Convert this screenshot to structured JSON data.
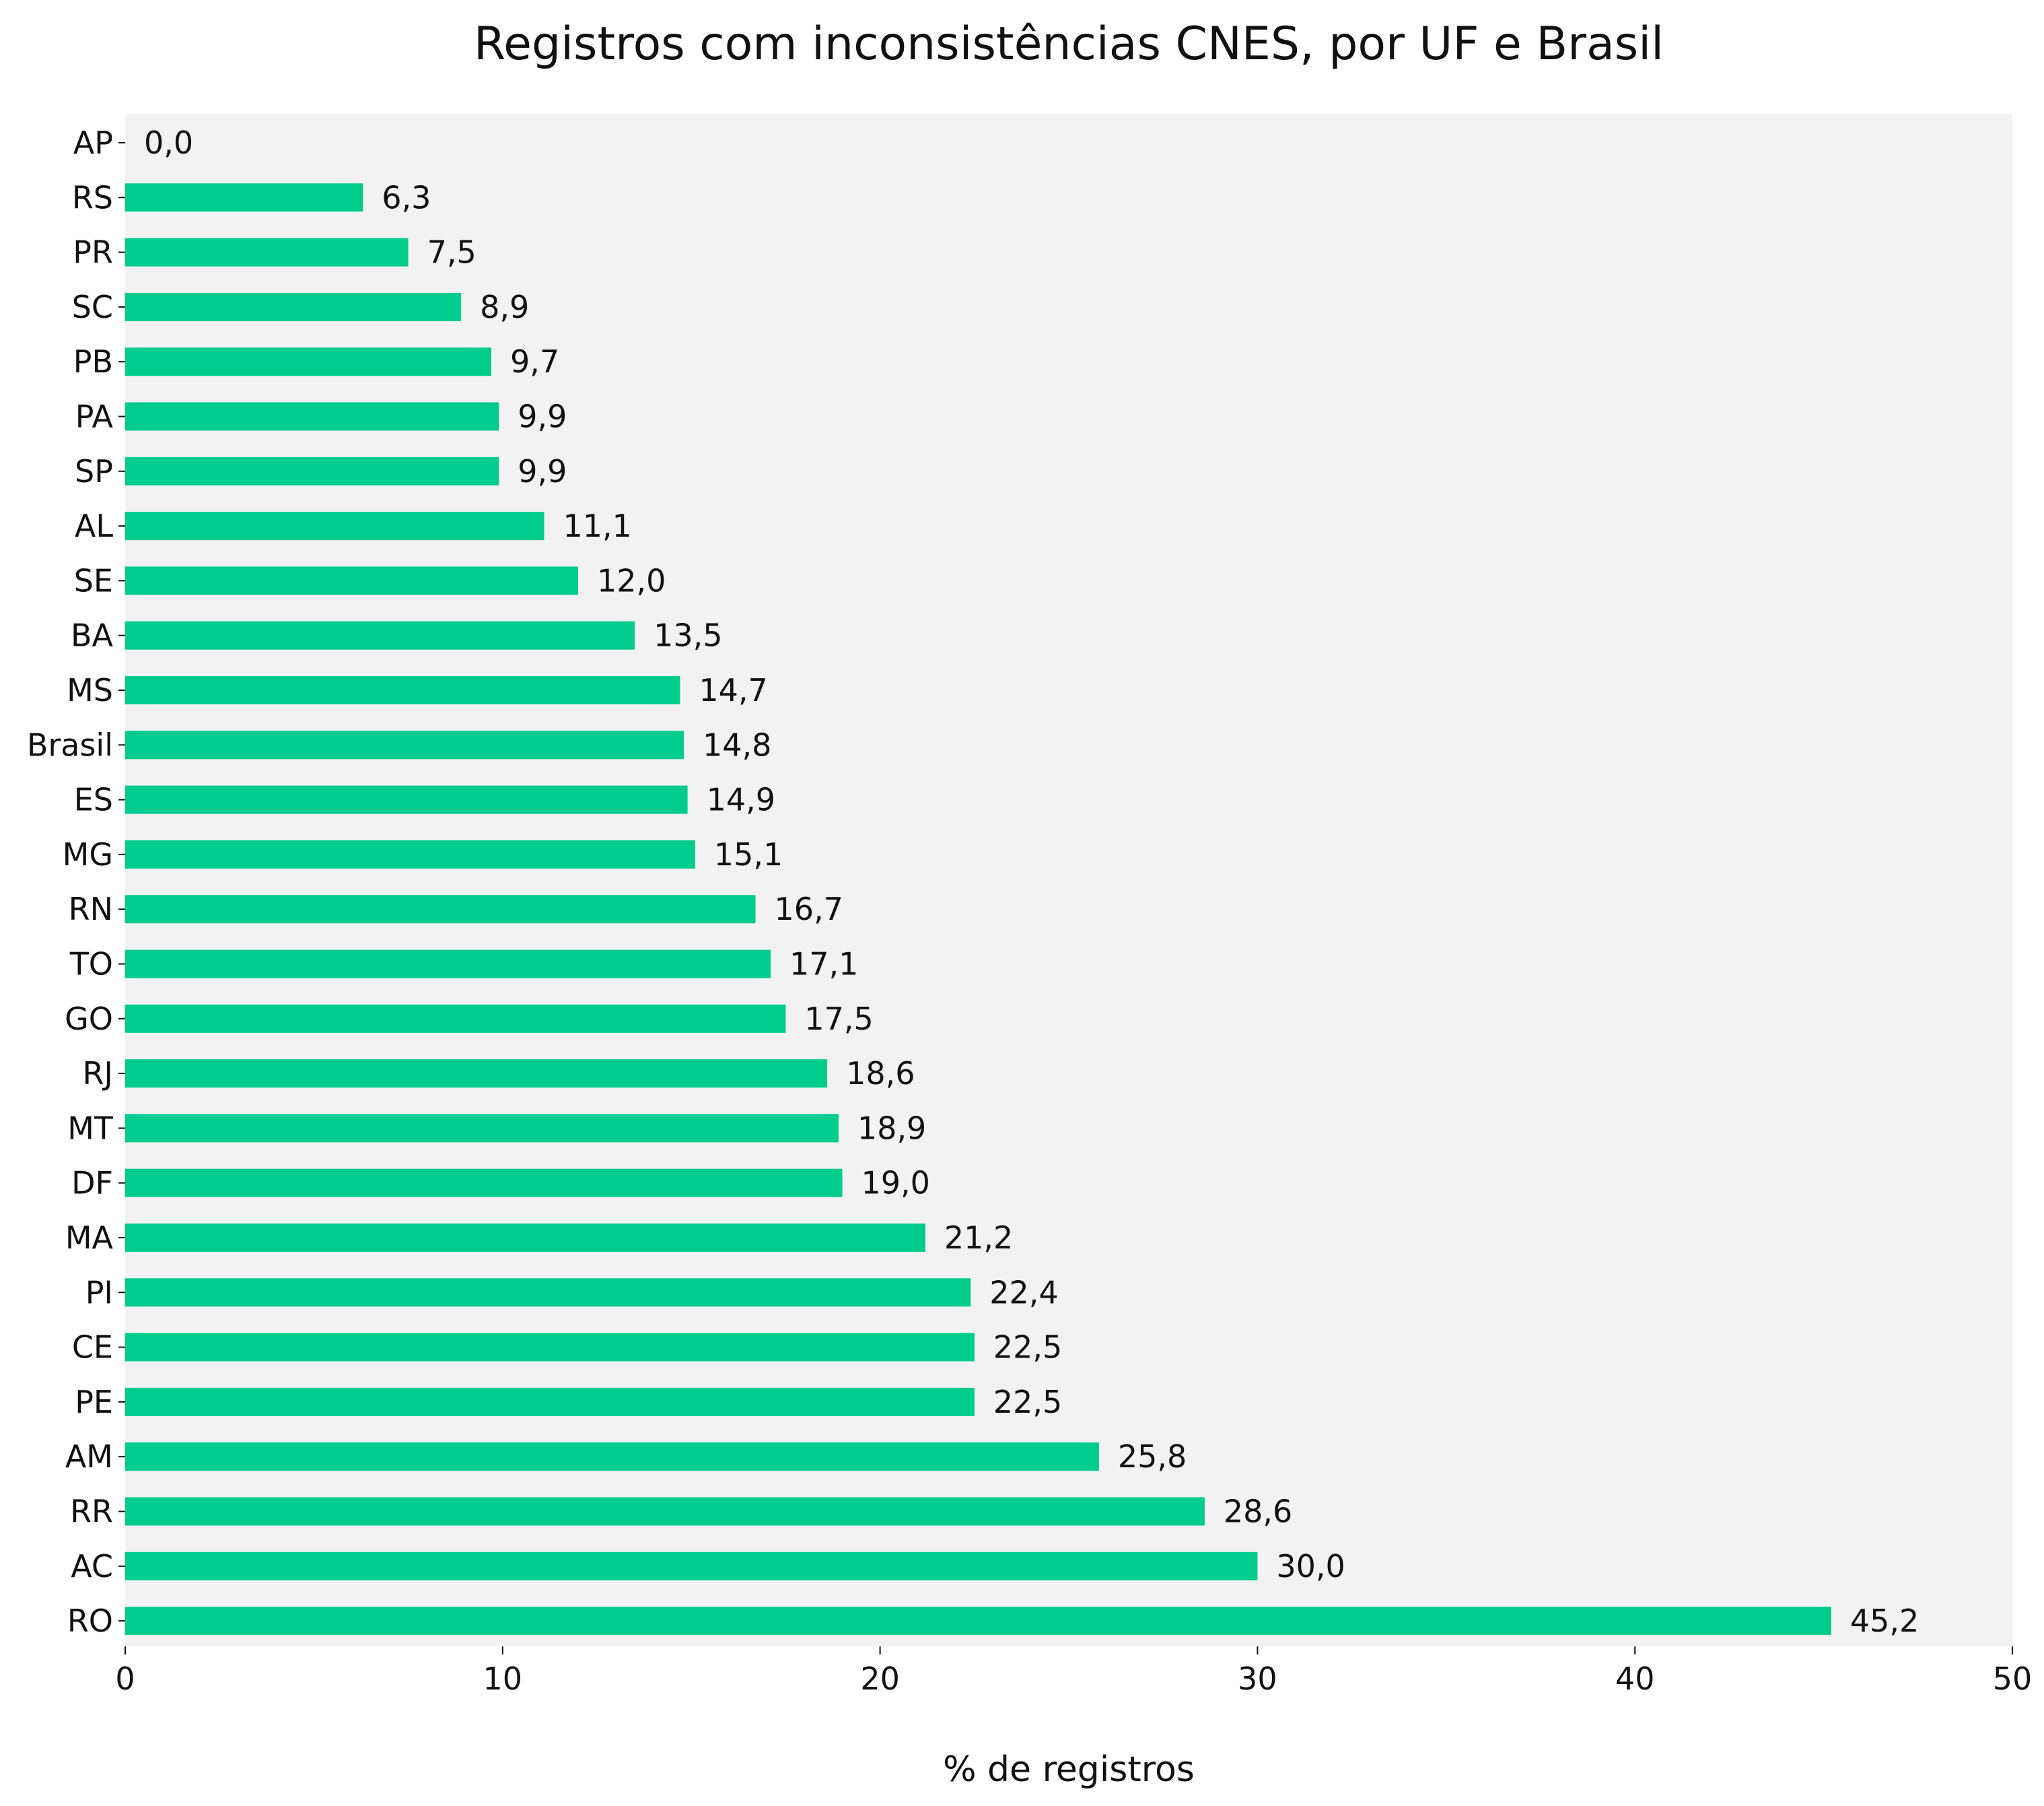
{
  "chart_data": {
    "type": "bar",
    "orientation": "horizontal",
    "title": "Registros com inconsistências CNES, por UF e Brasil",
    "xlabel": "% de registros",
    "ylabel": "",
    "xlim": [
      0,
      50
    ],
    "xticks": [
      0,
      10,
      20,
      30,
      40,
      50
    ],
    "grid": false,
    "bar_color": "#00CC8E",
    "plot_background": "#F2F2F2",
    "categories": [
      "AP",
      "RS",
      "PR",
      "SC",
      "PB",
      "PA",
      "SP",
      "AL",
      "SE",
      "BA",
      "MS",
      "Brasil",
      "ES",
      "MG",
      "RN",
      "TO",
      "GO",
      "RJ",
      "MT",
      "DF",
      "MA",
      "PI",
      "CE",
      "PE",
      "AM",
      "RR",
      "AC",
      "RO"
    ],
    "values": [
      0.0,
      6.3,
      7.5,
      8.9,
      9.7,
      9.9,
      9.9,
      11.1,
      12.0,
      13.5,
      14.7,
      14.8,
      14.9,
      15.1,
      16.7,
      17.1,
      17.5,
      18.6,
      18.9,
      19.0,
      21.2,
      22.4,
      22.5,
      22.5,
      25.8,
      28.6,
      30.0,
      45.2
    ],
    "value_labels": [
      "0,0",
      "6,3",
      "7,5",
      "8,9",
      "9,7",
      "9,9",
      "9,9",
      "11,1",
      "12,0",
      "13,5",
      "14,7",
      "14,8",
      "14,9",
      "15,1",
      "16,7",
      "17,1",
      "17,5",
      "18,6",
      "18,9",
      "19,0",
      "21,2",
      "22,4",
      "22,5",
      "22,5",
      "25,8",
      "28,6",
      "30,0",
      "45,2"
    ]
  }
}
